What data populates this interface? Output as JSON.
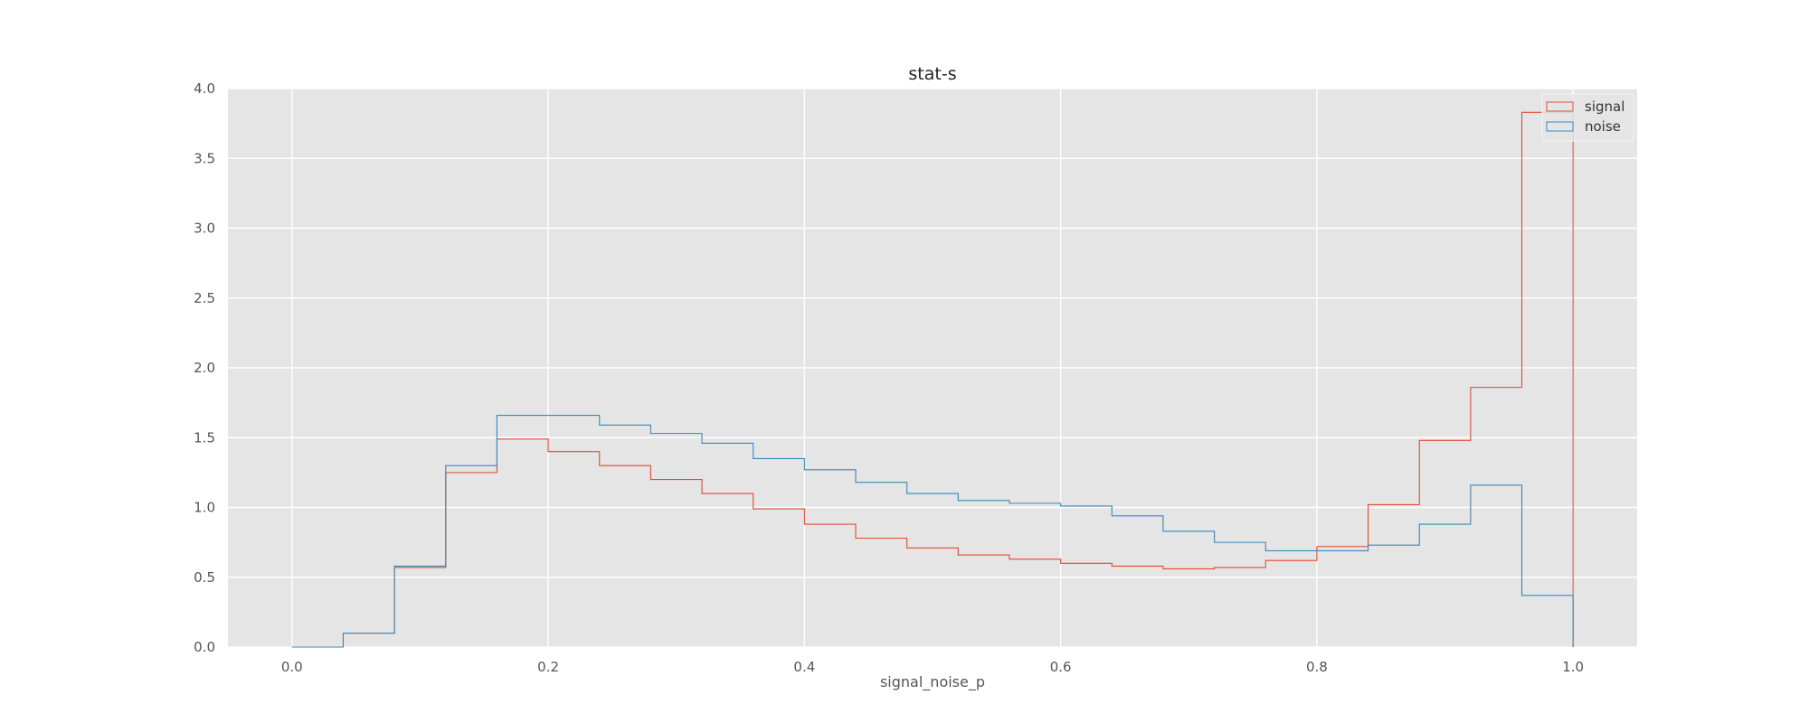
{
  "chart_data": {
    "type": "histogram-step",
    "title": "stat-s",
    "xlabel": "signal_noise_p",
    "ylabel": "",
    "xlim": [
      -0.05,
      1.05
    ],
    "ylim": [
      0,
      4.0
    ],
    "xticks": [
      0.0,
      0.2,
      0.4,
      0.6,
      0.8,
      1.0
    ],
    "xtick_labels": [
      "0.0",
      "0.2",
      "0.4",
      "0.6",
      "0.8",
      "1.0"
    ],
    "yticks": [
      0.0,
      0.5,
      1.0,
      1.5,
      2.0,
      2.5,
      3.0,
      3.5,
      4.0
    ],
    "ytick_labels": [
      "0.0",
      "0.5",
      "1.0",
      "1.5",
      "2.0",
      "2.5",
      "3.0",
      "3.5",
      "4.0"
    ],
    "grid": true,
    "legend_position": "top-right",
    "bin_edges": [
      0.0,
      0.04,
      0.08,
      0.12,
      0.16,
      0.2,
      0.24,
      0.28,
      0.32,
      0.36,
      0.4,
      0.44,
      0.48,
      0.52,
      0.56,
      0.6,
      0.64,
      0.68,
      0.72,
      0.76,
      0.8,
      0.84,
      0.88,
      0.92,
      0.96,
      1.0
    ],
    "series": [
      {
        "name": "signal",
        "color": "#E24A33",
        "values": [
          0.0,
          0.1,
          0.57,
          1.25,
          1.49,
          1.4,
          1.3,
          1.2,
          1.1,
          0.99,
          0.88,
          0.78,
          0.71,
          0.66,
          0.63,
          0.6,
          0.58,
          0.56,
          0.57,
          0.62,
          0.72,
          1.02,
          1.48,
          1.86,
          3.83
        ]
      },
      {
        "name": "noise",
        "color": "#348ABD",
        "values": [
          0.0,
          0.1,
          0.58,
          1.3,
          1.66,
          1.66,
          1.59,
          1.53,
          1.46,
          1.35,
          1.27,
          1.18,
          1.1,
          1.05,
          1.03,
          1.01,
          0.94,
          0.83,
          0.75,
          0.69,
          0.69,
          0.73,
          0.88,
          1.16,
          0.37
        ]
      }
    ],
    "plot_background": "#E5E5E5",
    "grid_color": "#FFFFFF"
  }
}
